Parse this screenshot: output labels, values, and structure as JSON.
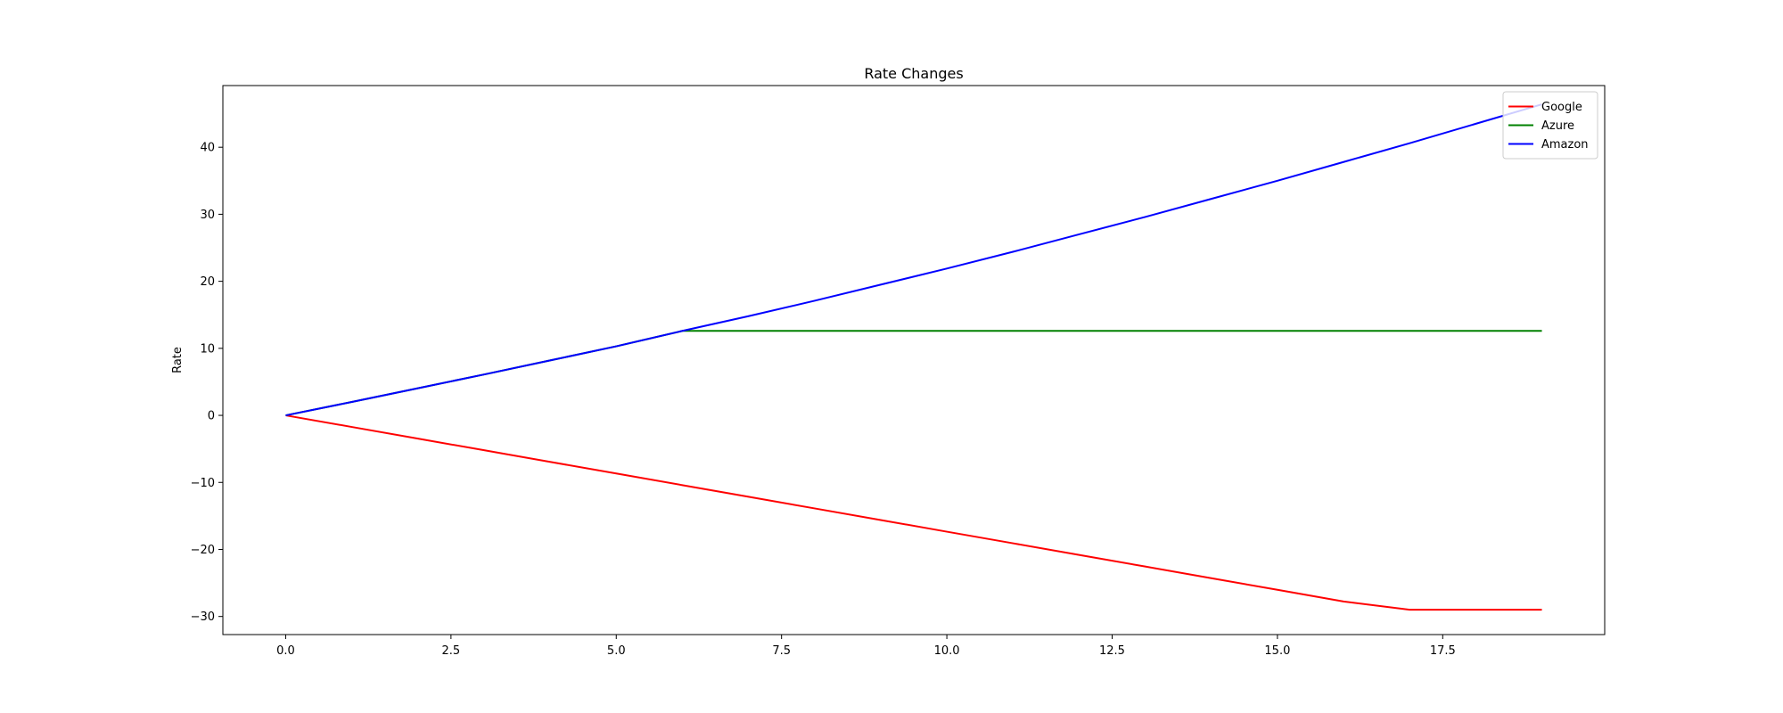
{
  "chart_data": {
    "type": "line",
    "title": "Rate Changes",
    "xlabel": "",
    "ylabel": "Rate",
    "xlim": [
      -0.95,
      19.95
    ],
    "ylim": [
      -32.7,
      49.2
    ],
    "xticks": [
      0.0,
      2.5,
      5.0,
      7.5,
      10.0,
      12.5,
      15.0,
      17.5
    ],
    "xtick_labels": [
      "0.0",
      "2.5",
      "5.0",
      "7.5",
      "10.0",
      "12.5",
      "15.0",
      "17.5"
    ],
    "yticks": [
      -30,
      -20,
      -10,
      0,
      10,
      20,
      30,
      40
    ],
    "ytick_labels": [
      "−30",
      "−20",
      "−10",
      "0",
      "10",
      "20",
      "30",
      "40"
    ],
    "grid": false,
    "legend_position": "top-right",
    "x": [
      0,
      1,
      2,
      3,
      4,
      5,
      6,
      7,
      8,
      9,
      10,
      11,
      12,
      13,
      14,
      15,
      16,
      17,
      18,
      19
    ],
    "series": [
      {
        "name": "Google",
        "color": "#ff0000",
        "values": [
          0,
          -1.73,
          -3.47,
          -5.2,
          -6.94,
          -8.67,
          -10.41,
          -12.14,
          -13.88,
          -15.61,
          -17.35,
          -19.08,
          -20.82,
          -22.55,
          -24.29,
          -26.02,
          -27.76,
          -29.0,
          -29.0,
          -29.0
        ]
      },
      {
        "name": "Azure",
        "color": "#008000",
        "values": [
          0,
          2.0,
          4.05,
          6.1,
          8.2,
          10.3,
          12.6,
          12.6,
          12.6,
          12.6,
          12.6,
          12.6,
          12.6,
          12.6,
          12.6,
          12.6,
          12.6,
          12.6,
          12.6,
          12.6
        ]
      },
      {
        "name": "Amazon",
        "color": "#0000ff",
        "values": [
          0,
          2.0,
          4.05,
          6.1,
          8.2,
          10.3,
          12.6,
          14.8,
          17.1,
          19.5,
          21.9,
          24.4,
          27.0,
          29.6,
          32.3,
          35.0,
          37.8,
          40.6,
          43.5,
          46.4
        ]
      }
    ]
  }
}
